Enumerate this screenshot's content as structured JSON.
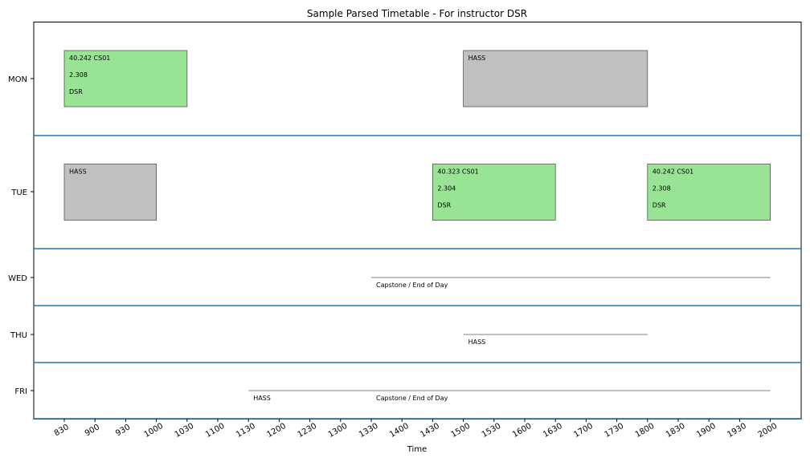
{
  "chart_data": {
    "type": "timetable",
    "title": "Sample Parsed Timetable - For instructor DSR",
    "xlabel": "Time",
    "ylabel": "",
    "days": [
      "MON",
      "TUE",
      "WED",
      "THU",
      "FRI"
    ],
    "time_ticks": [
      "830",
      "900",
      "930",
      "1000",
      "1030",
      "1100",
      "1130",
      "1200",
      "1230",
      "1300",
      "1330",
      "1400",
      "1430",
      "1500",
      "1530",
      "1600",
      "1630",
      "1700",
      "1730",
      "1800",
      "1830",
      "1900",
      "1930",
      "2000"
    ],
    "blocks": [
      {
        "day": "MON",
        "start": "830",
        "end": "1030",
        "lines": [
          "40.242 CS01",
          "2.308",
          "DSR"
        ],
        "color": "#98e494"
      },
      {
        "day": "MON",
        "start": "1500",
        "end": "1800",
        "lines": [
          "HASS"
        ],
        "color": "#c0c0c0"
      },
      {
        "day": "TUE",
        "start": "830",
        "end": "1000",
        "lines": [
          "HASS"
        ],
        "color": "#c0c0c0"
      },
      {
        "day": "TUE",
        "start": "1430",
        "end": "1630",
        "lines": [
          "40.323 CS01",
          "2.304",
          "DSR"
        ],
        "color": "#98e494"
      },
      {
        "day": "TUE",
        "start": "1800",
        "end": "2000",
        "lines": [
          "40.242 CS01",
          "2.308",
          "DSR"
        ],
        "color": "#98e494"
      }
    ],
    "line_events": [
      {
        "day": "WED",
        "start": "1330",
        "end": "2000",
        "labels": [
          {
            "text": "Capstone / End of Day",
            "at": "1330"
          }
        ]
      },
      {
        "day": "THU",
        "start": "1500",
        "end": "1800",
        "labels": [
          {
            "text": "HASS",
            "at": "1500"
          }
        ]
      },
      {
        "day": "FRI",
        "start": "1130",
        "end": "2000",
        "labels": [
          {
            "text": "HASS",
            "at": "1130"
          },
          {
            "text": "Capstone / End of Day",
            "at": "1330"
          }
        ]
      }
    ],
    "colors": {
      "separator": "#1f77b4",
      "axes": "#000000",
      "block_edge": "#555555",
      "event_line": "#808080"
    }
  }
}
